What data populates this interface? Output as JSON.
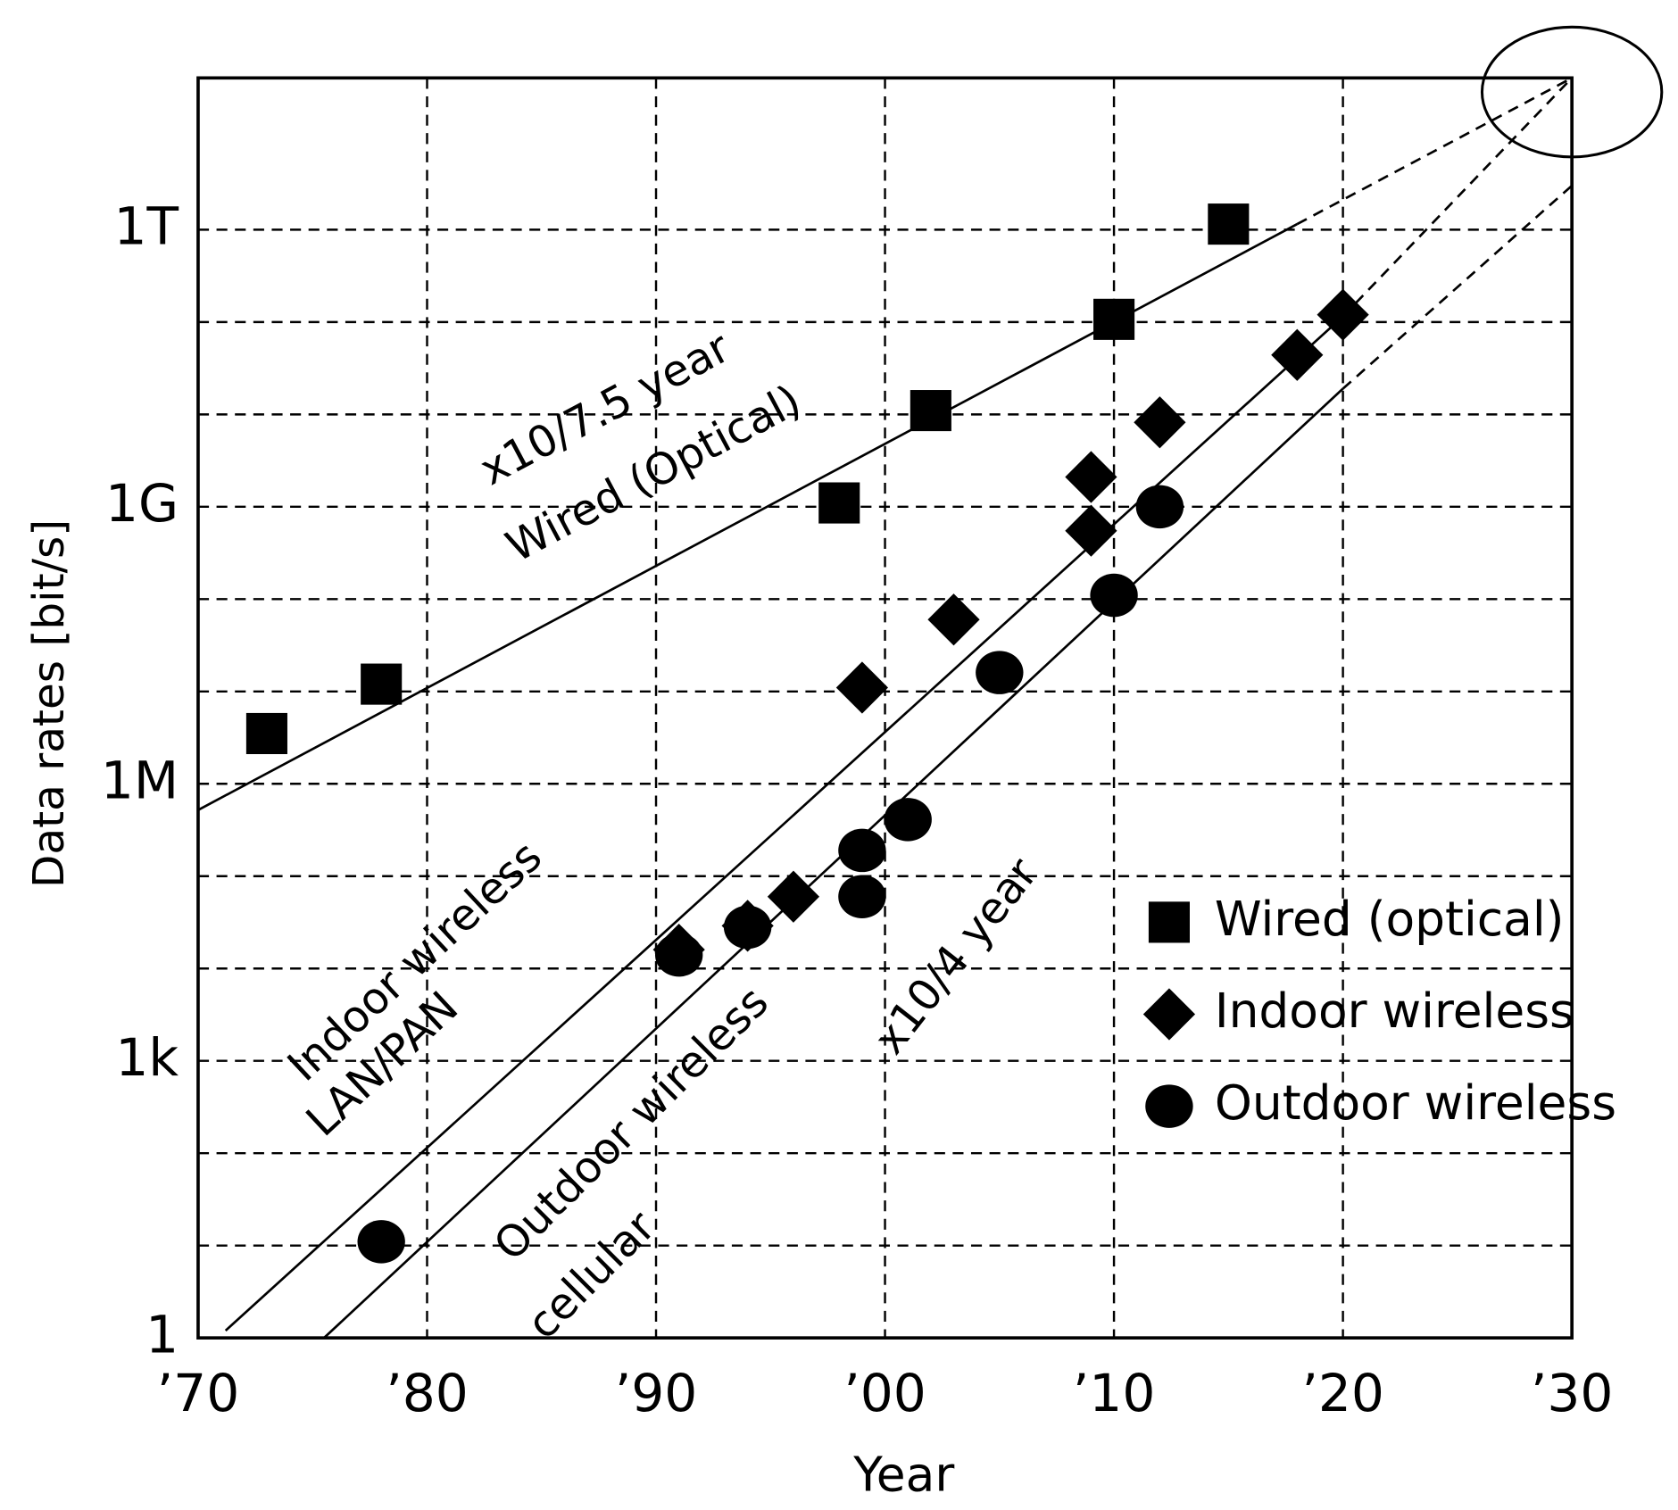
{
  "chart_data": {
    "type": "scatter",
    "x_label": "Year",
    "y_label": "Data rates [bit/s]",
    "log_y": true,
    "grid": true,
    "xlim": [
      1970,
      2030
    ],
    "xticks": [
      {
        "value": 1970,
        "label": "’70"
      },
      {
        "value": 1980,
        "label": "’80"
      },
      {
        "value": 1990,
        "label": "’90"
      },
      {
        "value": 2000,
        "label": "’00"
      },
      {
        "value": 2010,
        "label": "’10"
      },
      {
        "value": 2020,
        "label": "’20"
      },
      {
        "value": 2030,
        "label": "’30"
      }
    ],
    "ylim": [
      1,
      44000000000000
    ],
    "yticks": [
      1,
      {
        "value": 1000,
        "label": "1k"
      },
      {
        "value": 1000000,
        "label": "1M"
      },
      {
        "value": 1000000000,
        "label": "1G"
      },
      {
        "value": 1000000000000,
        "label": "1T"
      }
    ],
    "ygrid": [
      10,
      100,
      1000,
      10000,
      100000,
      1000000,
      10000000,
      100000000,
      1000000000,
      10000000000,
      100000000000,
      1000000000000
    ],
    "series": [
      {
        "name": "Wired (optical)",
        "marker": "square",
        "color": "#000000",
        "x": [
          1973,
          1978,
          1998,
          2002,
          2010,
          2015
        ],
        "values": [
          3500000,
          12000000,
          1100000000,
          11000000000,
          107000000000,
          1150000000000
        ],
        "trend": [
          {
            "x": [
              1970,
              2018
            ],
            "values": [
              520000,
              1150000000000
            ],
            "dashed": false
          },
          {
            "x": [
              2018,
              2030
            ],
            "values": [
              1150000000000,
              44000000000000
            ],
            "dashed": true
          }
        ]
      },
      {
        "name": "Indoor wireless",
        "marker": "diamond",
        "color": "#000000",
        "x": [
          1991,
          1994,
          1996,
          1999,
          2003,
          2009,
          2009,
          2012,
          2018,
          2020
        ],
        "values": [
          16000,
          29000,
          60000,
          11000000,
          60000000,
          550000000,
          2100000000,
          8200000000,
          44000000000,
          120000000000
        ],
        "trend": [
          {
            "x": [
              1971.2,
              2020
            ],
            "values": [
              1.2,
              115000000000
            ],
            "dashed": false
          },
          {
            "x": [
              2020,
              2030
            ],
            "values": [
              115000000000,
              44000000000000
            ],
            "dashed": true
          }
        ]
      },
      {
        "name": "Outdoor wireless",
        "marker": "circle",
        "color": "#000000",
        "x": [
          1978,
          1991,
          1994,
          1999,
          1999,
          2001,
          2005,
          2010,
          2012
        ],
        "values": [
          11,
          14000,
          28000,
          190000,
          60000,
          410000,
          16000000,
          110000000,
          1000000000
        ],
        "trend": [
          {
            "x": [
              1975.5,
              2020
            ],
            "values": [
              1,
              19000000000
            ],
            "dashed": false
          },
          {
            "x": [
              2020,
              2030
            ],
            "values": [
              19000000000,
              3000000000000
            ],
            "dashed": true
          }
        ]
      }
    ],
    "annotations": [
      "x10/7.5 year",
      "Wired (Optical)",
      "Indoor wireless",
      "LAN/PAN",
      "Outdoor wireless",
      "cellular",
      "x10/4 year"
    ]
  }
}
